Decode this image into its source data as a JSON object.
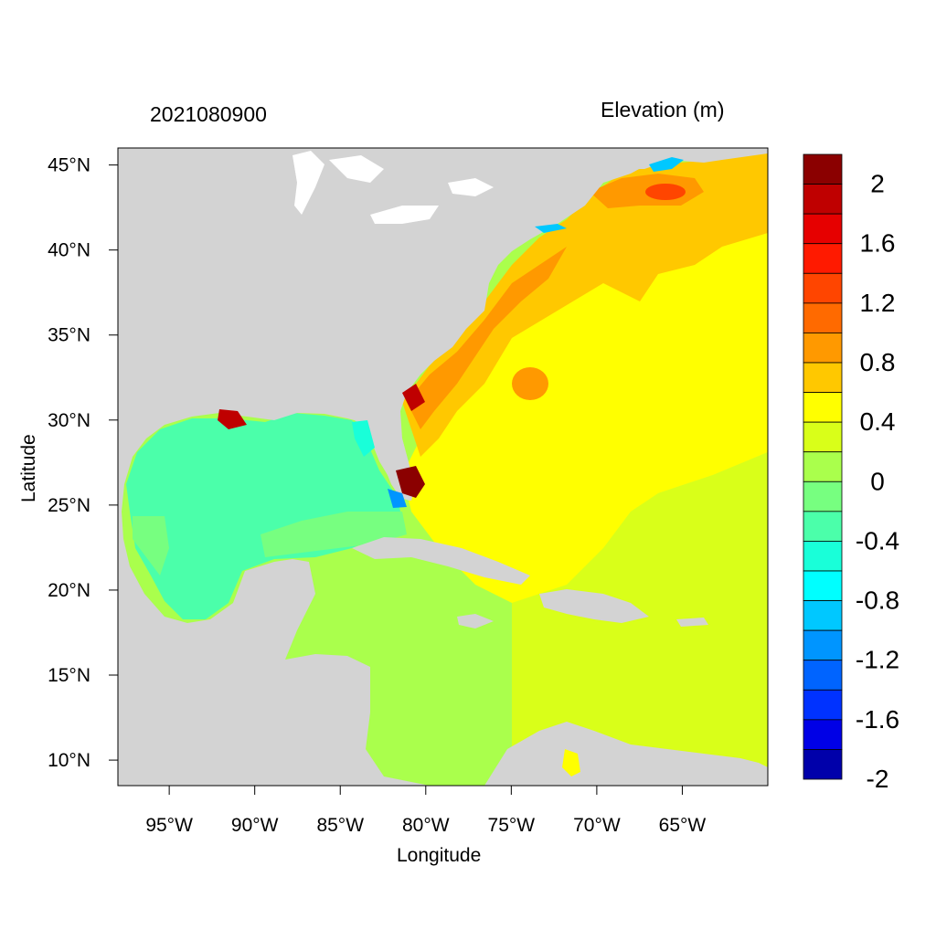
{
  "header": {
    "timestamp": "2021080900",
    "variable": "Elevation (m)"
  },
  "axes": {
    "xlabel": "Longitude",
    "ylabel": "Latitude",
    "lon_range": [
      -98,
      -60
    ],
    "lat_range": [
      8.5,
      46
    ],
    "xticks": [
      {
        "value": -95,
        "label": "95°W"
      },
      {
        "value": -90,
        "label": "90°W"
      },
      {
        "value": -85,
        "label": "85°W"
      },
      {
        "value": -80,
        "label": "80°W"
      },
      {
        "value": -75,
        "label": "75°W"
      },
      {
        "value": -70,
        "label": "70°W"
      },
      {
        "value": -65,
        "label": "65°W"
      }
    ],
    "yticks": [
      {
        "value": 45,
        "label": "45°N"
      },
      {
        "value": 40,
        "label": "40°N"
      },
      {
        "value": 35,
        "label": "35°N"
      },
      {
        "value": 30,
        "label": "30°N"
      },
      {
        "value": 25,
        "label": "25°N"
      },
      {
        "value": 20,
        "label": "20°N"
      },
      {
        "value": 15,
        "label": "15°N"
      },
      {
        "value": 10,
        "label": "10°N"
      }
    ]
  },
  "colorbar": {
    "bins_top_to_bottom": [
      "#8b0000",
      "#bf0000",
      "#e60000",
      "#ff1a00",
      "#ff4500",
      "#ff6a00",
      "#ff9900",
      "#ffc800",
      "#ffff00",
      "#d9ff19",
      "#aaff4c",
      "#77ff80",
      "#4bffaa",
      "#19ffd9",
      "#00ffff",
      "#00c8ff",
      "#0095ff",
      "#0064ff",
      "#0032ff",
      "#0000e6",
      "#0000aa"
    ],
    "labels": [
      {
        "bin": 1,
        "text": "2"
      },
      {
        "bin": 3,
        "text": "1.6"
      },
      {
        "bin": 5,
        "text": "1.2"
      },
      {
        "bin": 7,
        "text": "0.8"
      },
      {
        "bin": 9,
        "text": "0.4"
      },
      {
        "bin": 11,
        "text": "0"
      },
      {
        "bin": 13,
        "text": "-0.4"
      },
      {
        "bin": 15,
        "text": "-0.8"
      },
      {
        "bin": 17,
        "text": "-1.2"
      },
      {
        "bin": 19,
        "text": "-1.6"
      },
      {
        "bin": 21,
        "text": "-2"
      }
    ]
  },
  "colors": {
    "land": "#d3d3d3",
    "ocean_base": "#aaff4c",
    "gulf": "#4bffaa",
    "atlantic_mid": "#ffff00",
    "atlantic_east": "#d9ff19",
    "coastal_shelf": "#ffc800",
    "high": "#ff9900",
    "extreme": "#8b0000",
    "low": "#0095ff"
  }
}
